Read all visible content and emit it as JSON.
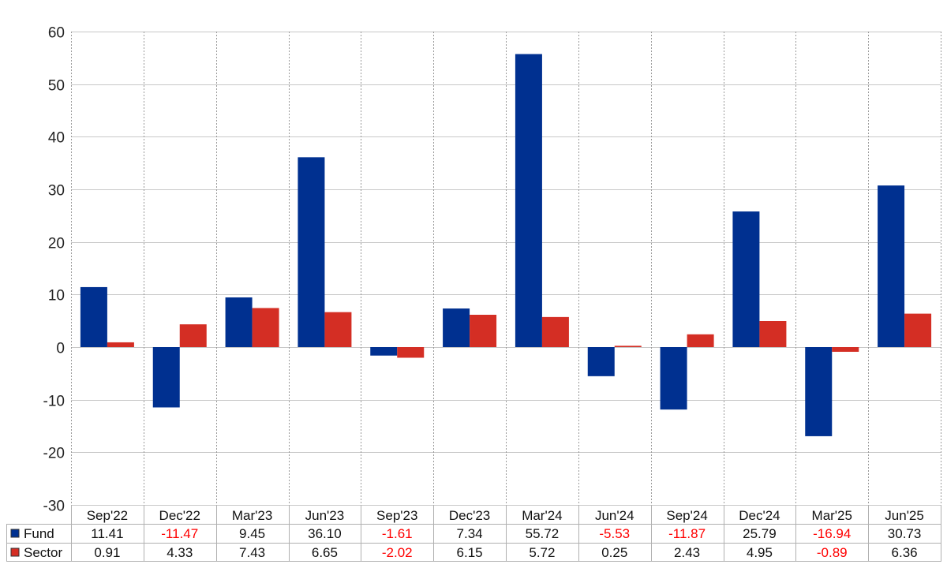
{
  "chart_data": {
    "type": "bar",
    "categories": [
      "Sep'22",
      "Dec'22",
      "Mar'23",
      "Jun'23",
      "Sep'23",
      "Dec'23",
      "Mar'24",
      "Jun'24",
      "Sep'24",
      "Dec'24",
      "Mar'25",
      "Jun'25"
    ],
    "series": [
      {
        "name": "Fund",
        "color": "#003090",
        "values": [
          11.41,
          -11.47,
          9.45,
          36.1,
          -1.61,
          7.34,
          55.72,
          -5.53,
          -11.87,
          25.79,
          -16.94,
          30.73
        ],
        "labels": [
          "11.41",
          "-11.47",
          "9.45",
          "36.10",
          "-1.61",
          "7.34",
          "55.72",
          "-5.53",
          "-11.87",
          "25.79",
          "-16.94",
          "30.73"
        ]
      },
      {
        "name": "Sector",
        "color": "#d42e24",
        "values": [
          0.91,
          4.33,
          7.43,
          6.65,
          -2.02,
          6.15,
          5.72,
          0.25,
          2.43,
          4.95,
          -0.89,
          6.36
        ],
        "labels": [
          "0.91",
          "4.33",
          "7.43",
          "6.65",
          "-2.02",
          "6.15",
          "5.72",
          "0.25",
          "2.43",
          "4.95",
          "-0.89",
          "6.36"
        ]
      }
    ],
    "ylim": [
      -30,
      60
    ],
    "yticks": [
      60,
      50,
      40,
      30,
      20,
      10,
      0,
      -10,
      -20,
      -30
    ],
    "grid": true,
    "legend": "table below chart",
    "negative_label_color": "#ff0000"
  }
}
